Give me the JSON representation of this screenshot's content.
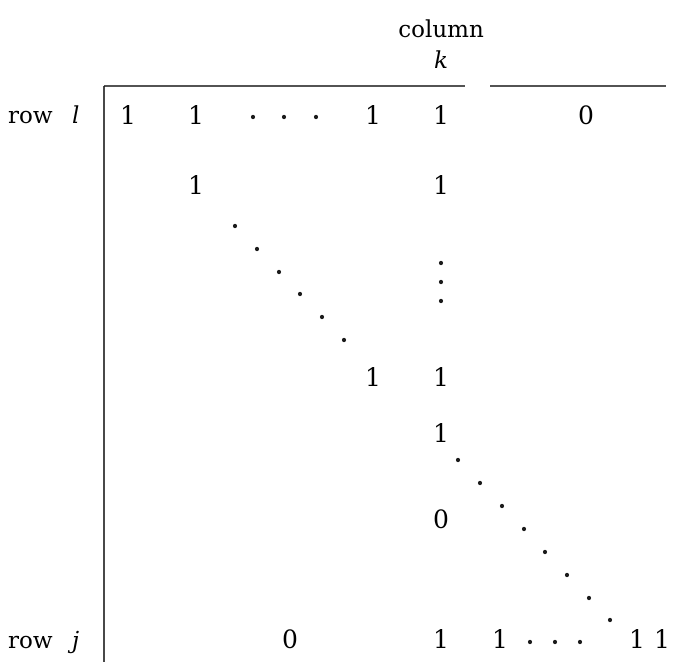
{
  "column_header": {
    "word": "column",
    "index": "k"
  },
  "rows": [
    {
      "word": "row",
      "index": "l"
    },
    {
      "word": "row",
      "index": "j"
    }
  ],
  "entries": {
    "r1_c1": "1",
    "r1_c2": "1",
    "r1_c3": "1",
    "r1_col_k": "1",
    "r1_zero": "0",
    "r2_c2": "1",
    "r2_col_k": "1",
    "diag_end": "1",
    "mid_col_k": "1",
    "lower_col_k_one": "1",
    "lower_col_k_zero": "0",
    "last_zero": "0",
    "last_col_k": "1",
    "last_c1": "1",
    "last_c2": "1",
    "last_c3": "1"
  },
  "colors": {
    "ink": "#1a1a1a",
    "background": "#ffffff"
  }
}
